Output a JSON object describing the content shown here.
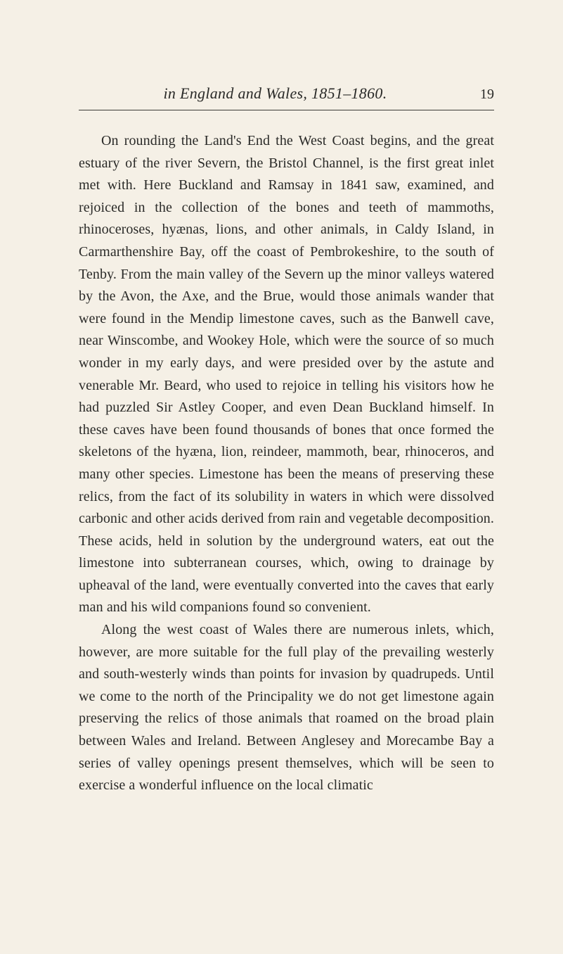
{
  "header": {
    "title": "in England and Wales, 1851–1860.",
    "page_number": "19"
  },
  "paragraphs": [
    "On rounding the Land's End the West Coast begins, and the great estuary of the river Severn, the Bristol Channel, is the first great inlet met with. Here Buckland and Ramsay in 1841 saw, examined, and rejoiced in the collection of the bones and teeth of mammoths, rhinoceroses, hyænas, lions, and other animals, in Caldy Island, in Carmarthenshire Bay, off the coast of Pembrokeshire, to the south of Tenby. From the main valley of the Severn up the minor valleys watered by the Avon, the Axe, and the Brue, would those animals wander that were found in the Mendip limestone caves, such as the Banwell cave, near Winscombe, and Wookey Hole, which were the source of so much wonder in my early days, and were presided over by the astute and venerable Mr. Beard, who used to rejoice in telling his visitors how he had puzzled Sir Astley Cooper, and even Dean Buckland himself. In these caves have been found thousands of bones that once formed the skeletons of the hyæna, lion, reindeer, mammoth, bear, rhinoceros, and many other species. Limestone has been the means of preserving these relics, from the fact of its solubility in waters in which were dissolved carbonic and other acids derived from rain and vegetable decomposition. These acids, held in solution by the underground waters, eat out the limestone into subterranean courses, which, owing to drainage by upheaval of the land, were eventually converted into the caves that early man and his wild companions found so convenient.",
    "Along the west coast of Wales there are numerous inlets, which, however, are more suitable for the full play of the prevailing westerly and south-westerly winds than points for invasion by quadrupeds. Until we come to the north of the Principality we do not get limestone again preserving the relics of those animals that roamed on the broad plain between Wales and Ireland. Between Anglesey and Morecambe Bay a series of valley openings present themselves, which will be seen to exercise a wonderful influence on the local climatic"
  ],
  "colors": {
    "background": "#f5f0e6",
    "text": "#2a2a28",
    "rule": "#3a3a36"
  },
  "typography": {
    "body_fontsize": 20,
    "header_fontsize": 22,
    "line_height": 1.58,
    "font_family": "Georgia, Times New Roman, serif"
  }
}
